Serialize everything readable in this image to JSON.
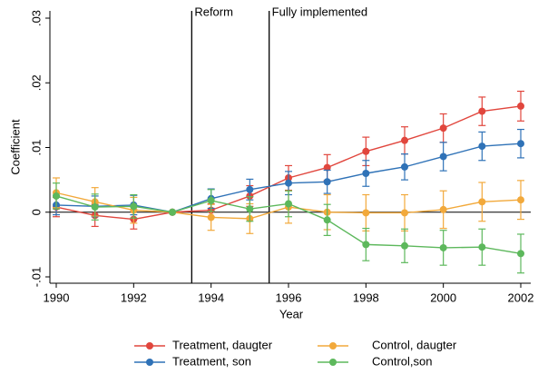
{
  "chart_data": {
    "type": "line",
    "x": [
      1990,
      1991,
      1992,
      1993,
      1994,
      1995,
      1996,
      1997,
      1998,
      1999,
      2000,
      2001,
      2002
    ],
    "xlabel": "Year",
    "ylabel": "Coefficient",
    "xlim": [
      1990,
      2002
    ],
    "xticks": [
      1990,
      1992,
      1994,
      1996,
      1998,
      2000,
      2002
    ],
    "ylim": [
      -0.01,
      0.03
    ],
    "yticks": [
      {
        "value": -0.01,
        "label": "-.01"
      },
      0,
      {
        "value": 0.01,
        "label": ".01"
      },
      {
        "value": 0.02,
        "label": ".02"
      },
      {
        "value": 0.03,
        "label": ".03"
      }
    ],
    "reference_lines": [
      {
        "x": 1993.5,
        "label": "Reform"
      },
      {
        "x": 1995.5,
        "label": "Fully implemented"
      }
    ],
    "series": [
      {
        "name": "Treatment, daugter",
        "color": "#e1463d",
        "values": [
          0.0008,
          -0.0005,
          -0.0011,
          0,
          0.0003,
          0.0025,
          0.0053,
          0.0069,
          0.0094,
          0.0111,
          0.013,
          0.0156,
          0.0164
        ],
        "errors": [
          0.0015,
          0.0017,
          0.0015,
          0,
          0.001,
          0.0016,
          0.0019,
          0.002,
          0.0022,
          0.0021,
          0.0022,
          0.0022,
          0.0023
        ]
      },
      {
        "name": "Treatment, son",
        "color": "#2f72b7",
        "values": [
          0.0011,
          0.0009,
          0.0011,
          0,
          0.0021,
          0.0035,
          0.0045,
          0.0047,
          0.006,
          0.007,
          0.0086,
          0.0102,
          0.0106
        ],
        "errors": [
          0.0015,
          0.0016,
          0.0015,
          0,
          0.0015,
          0.0016,
          0.0018,
          0.0018,
          0.002,
          0.002,
          0.0022,
          0.0022,
          0.0022
        ]
      },
      {
        "name": "Control, daugter",
        "color": "#f2a93b",
        "values": [
          0.003,
          0.0016,
          0.0003,
          0,
          -0.0008,
          -0.001,
          0.0008,
          0,
          -0.0001,
          -0.0001,
          0.0004,
          0.0016,
          0.0019
        ],
        "errors": [
          0.0023,
          0.0022,
          0.002,
          0,
          0.002,
          0.0023,
          0.0025,
          0.0027,
          0.0028,
          0.0028,
          0.0029,
          0.003,
          0.003
        ]
      },
      {
        "name": "Control,son",
        "color": "#5db85c",
        "values": [
          0.0025,
          0.0008,
          0.0009,
          0,
          0.0018,
          0.0005,
          0.0013,
          -0.0012,
          -0.005,
          -0.0052,
          -0.0055,
          -0.0054,
          -0.0064
        ],
        "errors": [
          0.002,
          0.002,
          0.0018,
          0,
          0.0017,
          0.0019,
          0.002,
          0.0024,
          0.0025,
          0.0026,
          0.0027,
          0.0028,
          0.003
        ]
      }
    ]
  }
}
